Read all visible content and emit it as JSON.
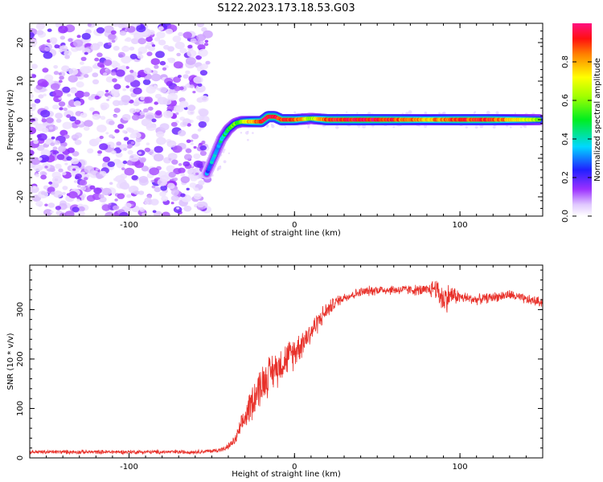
{
  "figure": {
    "title": "S122.2023.173.18.53.G03"
  },
  "chart_data": [
    {
      "type": "heatmap",
      "xlabel": "Height of straight line (km)",
      "ylabel": "Frequency (Hz)",
      "xlim": [
        -160,
        150
      ],
      "ylim": [
        -25,
        25
      ],
      "xticks": [
        -100,
        0,
        100
      ],
      "yticks": [
        -20,
        -10,
        0,
        10,
        20
      ],
      "colorbar": {
        "label": "Normalized spectral amplitude",
        "range": [
          0,
          1
        ],
        "ticks": [
          0.0,
          0.2,
          0.4,
          0.6,
          0.8
        ],
        "tick_labels": [
          "0.0",
          "0.2",
          "0.4",
          "0.6",
          "0.8"
        ],
        "colormap": "rainbow (white-violet-blue-cyan-green-yellow-red-pink)"
      },
      "noise_region_x": [
        -160,
        -52
      ],
      "ridge": {
        "x": [
          -53,
          -48,
          -44,
          -40,
          -36,
          -32,
          -28,
          -24,
          -20,
          -16,
          -12,
          -8,
          -4,
          0,
          10,
          20,
          40,
          60,
          80,
          100,
          120,
          148
        ],
        "y": [
          -14,
          -9,
          -5,
          -2.5,
          -1,
          -0.5,
          -0.5,
          -0.5,
          -0.5,
          0.8,
          0.8,
          0,
          0,
          0,
          0.3,
          0,
          0,
          0,
          0,
          0,
          0,
          0
        ],
        "amplitude": [
          0.3,
          0.35,
          0.4,
          0.5,
          0.55,
          0.6,
          0.75,
          0.85,
          0.9,
          0.95,
          0.95,
          0.9,
          0.9,
          0.9,
          0.6,
          0.9,
          0.95,
          0.9,
          0.8,
          0.9,
          0.9,
          0.6
        ]
      },
      "grid": false
    },
    {
      "type": "line",
      "xlabel": "Height of straight line (km)",
      "ylabel": "SNR (10 * v/v)",
      "xlim": [
        -160,
        150
      ],
      "ylim": [
        0,
        390
      ],
      "xticks": [
        -100,
        0,
        100
      ],
      "yticks": [
        0,
        100,
        200,
        300
      ],
      "series_color": "#e8312a",
      "series": [
        {
          "x": [
            -160,
            -140,
            -120,
            -100,
            -80,
            -60,
            -50,
            -42,
            -36,
            -30,
            -25,
            -20,
            -15,
            -10,
            -5,
            0,
            5,
            10,
            15,
            20,
            25,
            30,
            40,
            50,
            60,
            70,
            80,
            85,
            90,
            95,
            100,
            110,
            120,
            130,
            140,
            150
          ],
          "y": [
            12,
            12,
            12,
            12,
            12,
            12,
            14,
            18,
            35,
            80,
            120,
            150,
            170,
            185,
            200,
            215,
            235,
            255,
            280,
            300,
            315,
            325,
            335,
            340,
            340,
            340,
            338,
            345,
            320,
            330,
            325,
            320,
            325,
            330,
            320,
            315
          ],
          "noise_amplitude": [
            5,
            5,
            5,
            5,
            5,
            5,
            5,
            6,
            12,
            30,
            45,
            50,
            45,
            45,
            40,
            40,
            35,
            30,
            25,
            20,
            15,
            12,
            12,
            12,
            12,
            12,
            15,
            25,
            40,
            25,
            15,
            12,
            12,
            12,
            12,
            12
          ]
        }
      ],
      "grid": false
    }
  ]
}
